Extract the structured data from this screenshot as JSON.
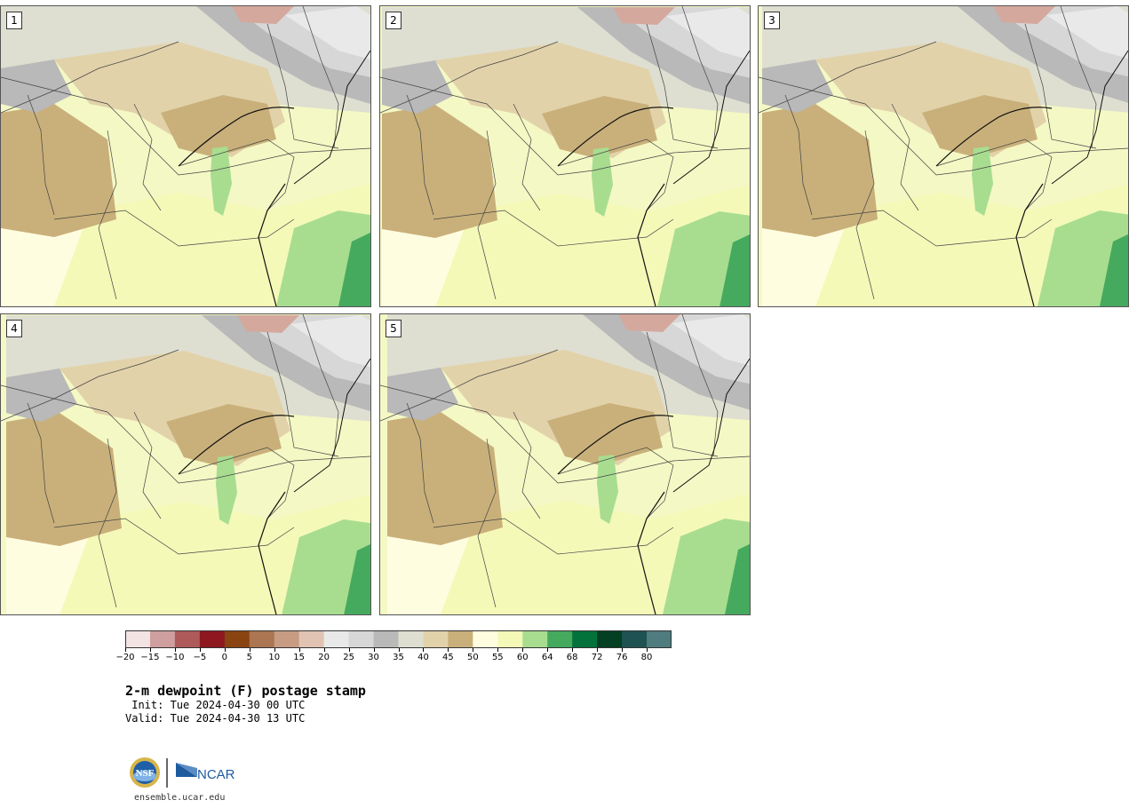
{
  "panels": [
    {
      "label": "1"
    },
    {
      "label": "2"
    },
    {
      "label": "3"
    },
    {
      "label": "4"
    },
    {
      "label": "5"
    }
  ],
  "colorbar": {
    "colors": [
      "#f3e3e3",
      "#cf9e9e",
      "#ae5a5a",
      "#8d1820",
      "#8a4412",
      "#ab7651",
      "#c79c82",
      "#e0c3b3",
      "#e9e9e9",
      "#d7d7d7",
      "#b9b9b9",
      "#dedfd1",
      "#e2d2aa",
      "#c9b07a",
      "#fffde0",
      "#f4f9b8",
      "#a8dd90",
      "#46aa5e",
      "#03723b",
      "#033f22",
      "#1f5252",
      "#4f7c7e"
    ],
    "tick_labels": [
      "−20",
      "−15",
      "−10",
      "−5",
      "0",
      "5",
      "10",
      "15",
      "20",
      "25",
      "30",
      "35",
      "40",
      "45",
      "50",
      "55",
      "60",
      "64",
      "68",
      "72",
      "76",
      "80"
    ]
  },
  "title": "2-m dewpoint (F) postage stamp",
  "init": " Init: Tue 2024-04-30 00 UTC",
  "valid": "Valid: Tue 2024-04-30 13 UTC",
  "logo": {
    "nsf_text": "NSF",
    "ncar_text": "NCAR"
  },
  "url": "ensemble.ucar.edu"
}
